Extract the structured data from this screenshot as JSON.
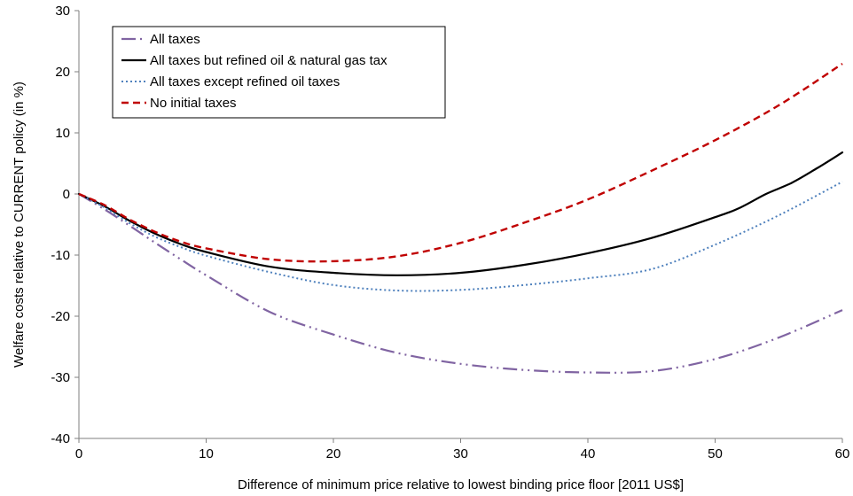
{
  "chart_data": {
    "type": "line",
    "xlabel": "Difference of minimum price relative to lowest binding price floor [2011 US$]",
    "ylabel": "Welfare costs relative to CURRENT policy (in %)",
    "xlim": [
      0,
      60
    ],
    "ylim": [
      -40,
      30
    ],
    "xticks": [
      0,
      10,
      20,
      30,
      40,
      50,
      60
    ],
    "yticks": [
      -40,
      -30,
      -20,
      -10,
      0,
      10,
      20,
      30
    ],
    "grid": false,
    "legend_position": "top-left",
    "series": [
      {
        "name": "All taxes",
        "color": "#8064A2",
        "dash": "dash-dot-dot",
        "x": [
          0,
          2,
          4,
          6,
          8,
          10,
          15,
          20,
          25,
          30,
          35,
          40,
          45,
          50,
          55,
          60
        ],
        "y": [
          0,
          -2.5,
          -5.2,
          -8,
          -10.7,
          -13.3,
          -19.3,
          -23,
          -26,
          -27.8,
          -28.8,
          -29.2,
          -29,
          -27,
          -23.5,
          -19
        ]
      },
      {
        "name": "All taxes but refined oil & natural gas tax",
        "color": "#000000",
        "dash": "solid",
        "x": [
          0,
          2,
          4,
          6,
          8,
          10,
          15,
          20,
          25,
          30,
          35,
          40,
          45,
          50,
          52,
          54,
          56,
          58,
          60
        ],
        "y": [
          0,
          -2,
          -4.4,
          -6.5,
          -8.2,
          -9.5,
          -11.9,
          -12.9,
          -13.3,
          -12.9,
          -11.6,
          -9.7,
          -7.2,
          -3.8,
          -2.2,
          0,
          1.8,
          4.2,
          6.8
        ]
      },
      {
        "name": "All taxes except refined oil taxes",
        "color": "#4F81BD",
        "dash": "dot",
        "x": [
          0,
          2,
          4,
          6,
          8,
          10,
          15,
          20,
          25,
          30,
          35,
          40,
          45,
          50,
          55,
          60
        ],
        "y": [
          0,
          -2.2,
          -4.8,
          -7,
          -8.7,
          -10.1,
          -12.8,
          -14.9,
          -15.8,
          -15.7,
          -14.9,
          -13.8,
          -12.3,
          -8.3,
          -3.5,
          2
        ]
      },
      {
        "name": "No initial taxes",
        "color": "#C00000",
        "dash": "dash",
        "x": [
          0,
          2,
          4,
          6,
          8,
          10,
          15,
          20,
          25,
          30,
          35,
          40,
          45,
          50,
          55,
          60
        ],
        "y": [
          0,
          -1.8,
          -4.2,
          -6.2,
          -7.8,
          -8.9,
          -10.7,
          -11,
          -10.2,
          -8,
          -4.7,
          -0.9,
          3.8,
          8.8,
          14.5,
          21.3
        ]
      }
    ]
  }
}
